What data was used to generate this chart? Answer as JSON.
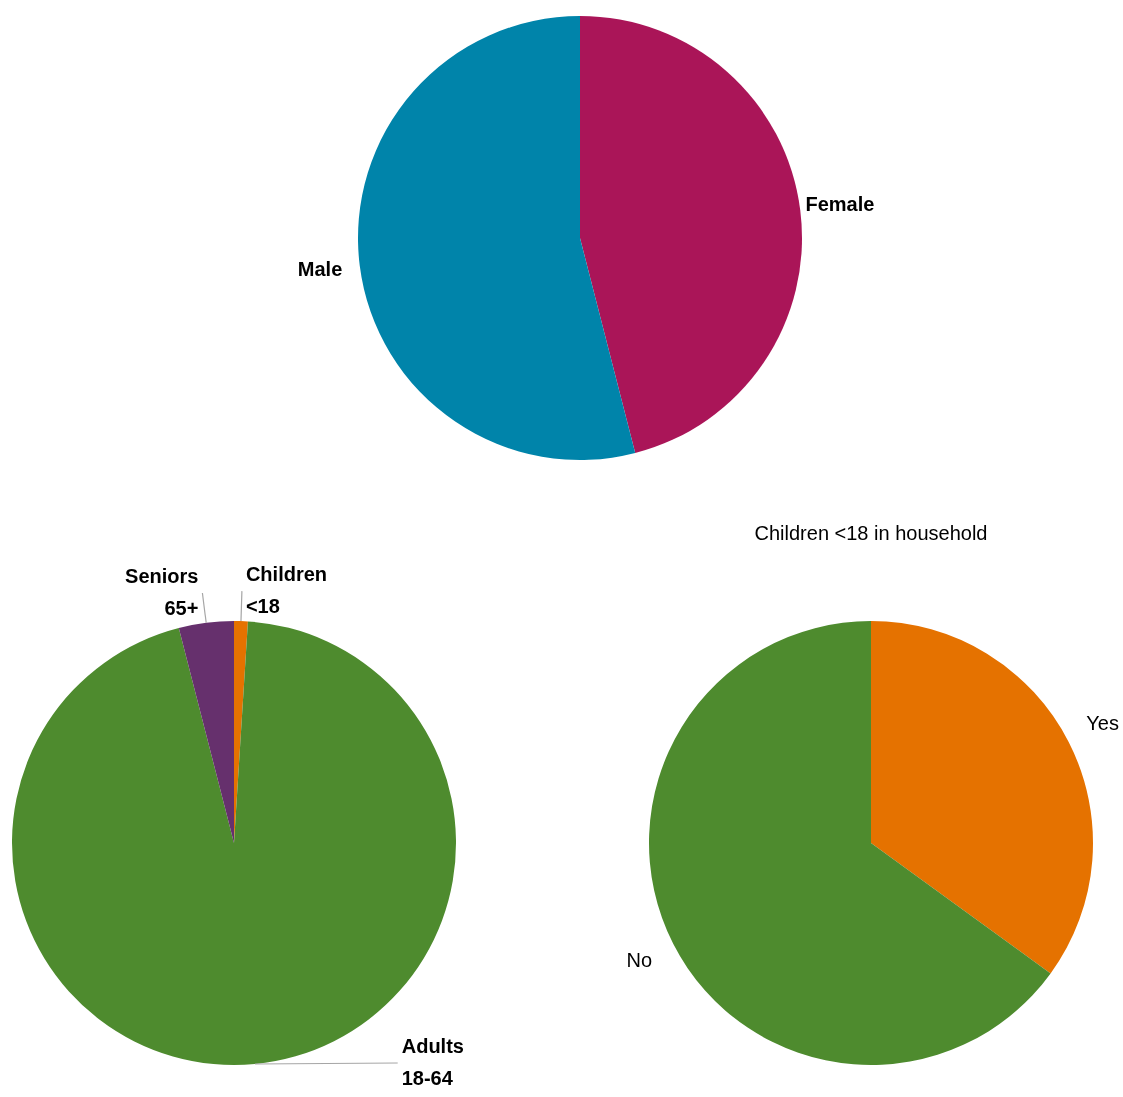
{
  "chart_data": [
    {
      "type": "pie",
      "categories": [
        "Female",
        "Male"
      ],
      "values": [
        46,
        54
      ],
      "colors": [
        "#aa1558",
        "#0084aa"
      ],
      "legend": false
    },
    {
      "type": "pie",
      "categories": [
        "Children <18",
        "Adults 18-64",
        "Seniors 65+"
      ],
      "values": [
        1,
        95,
        4
      ],
      "colors": [
        "#e57200",
        "#4e8b2e",
        "#66306d"
      ],
      "legend": false
    },
    {
      "type": "pie",
      "title": "Children <18 in household",
      "categories": [
        "Yes",
        "No"
      ],
      "values": [
        35,
        65
      ],
      "colors": [
        "#e57200",
        "#4e8b2e"
      ],
      "legend": false
    }
  ]
}
